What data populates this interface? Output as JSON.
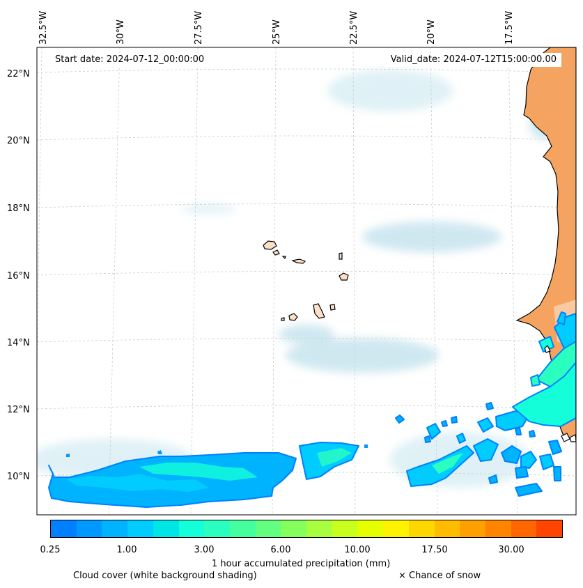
{
  "map": {
    "lon_labels": [
      "32.5°W",
      "30°W",
      "27.5°W",
      "25°W",
      "22.5°W",
      "20°W",
      "17.5°W"
    ],
    "lat_labels": [
      "22°N",
      "20°N",
      "18°N",
      "16°N",
      "14°N",
      "12°N",
      "10°N"
    ],
    "start_date": "Start date: 2024-07-12_00:00:00",
    "valid_date": "Valid_date: 2024-07-12T15:00:00.00",
    "colors": {
      "land": "#f4a460",
      "island_land": "#fbe0c8",
      "coast": "#000000",
      "cloud": "#a9d6e5",
      "grid": "#cccccc"
    }
  },
  "colorbar": {
    "colors": [
      "#0080ff",
      "#0099ff",
      "#00b3ff",
      "#00ccff",
      "#00e5e5",
      "#14ffd9",
      "#2bffbf",
      "#45ff9f",
      "#63ff80",
      "#85ff5c",
      "#a8ff3d",
      "#c8ff1f",
      "#e6ff00",
      "#fff200",
      "#ffd700",
      "#ffbb00",
      "#ff9f00",
      "#ff8400",
      "#ff6600",
      "#ff4400"
    ],
    "tick_labels": [
      "0.25",
      "1.00",
      "3.00",
      "6.00",
      "10.00",
      "17.50",
      "30.00"
    ],
    "title": "1 hour accumulated precipitation (mm)",
    "cloud_caption": "Cloud cover (white background shading)",
    "snow_caption": "× Chance of snow"
  }
}
